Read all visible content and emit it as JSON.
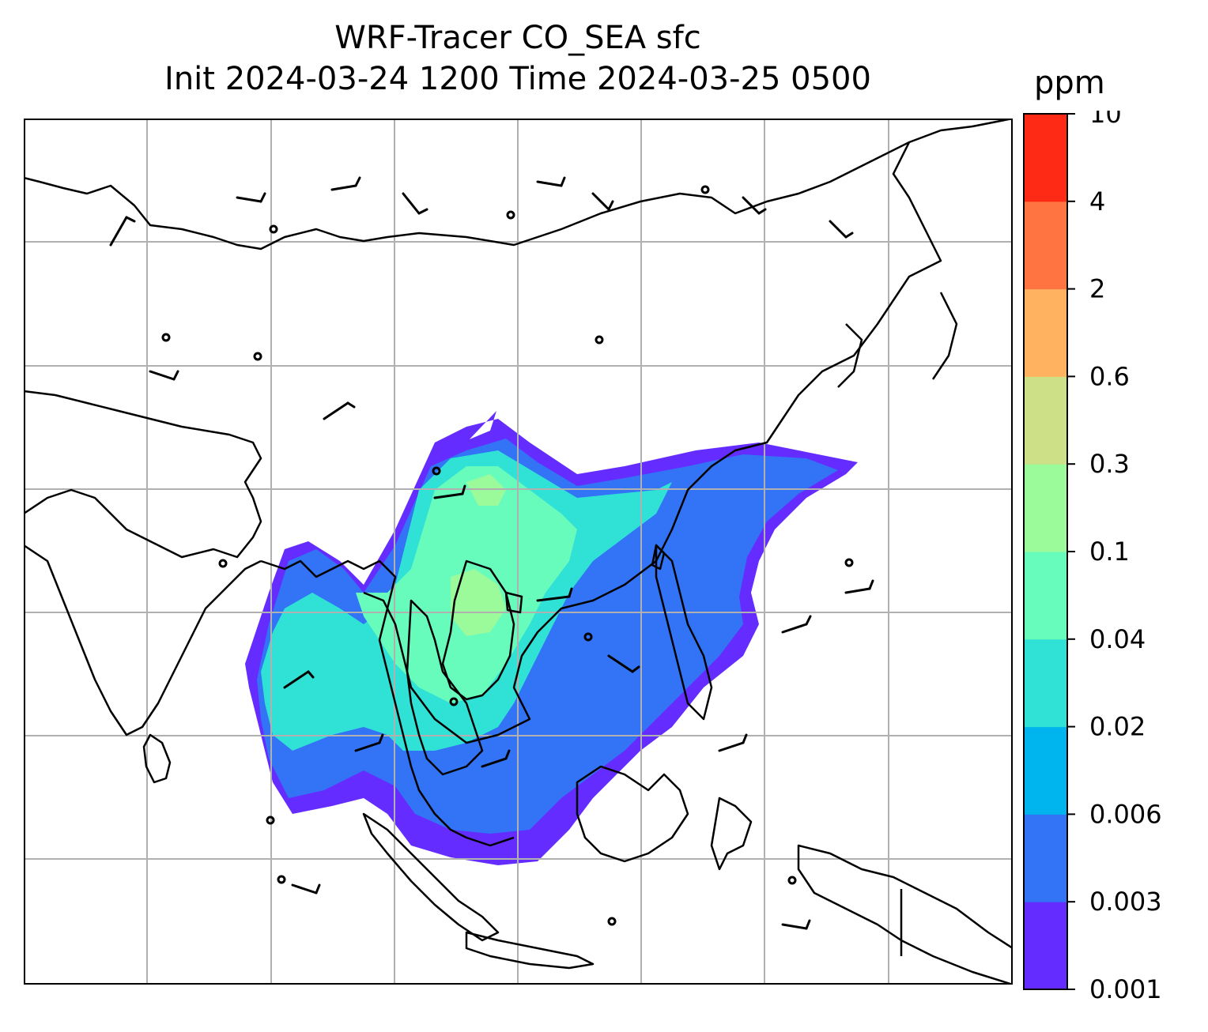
{
  "title": {
    "line1": "WRF-Tracer CO_SEA sfc",
    "line2": "Init 2024-03-24 1200 Time 2024-03-25 0500"
  },
  "colorbar": {
    "unit": "ppm",
    "levels": [
      "0.001",
      "0.003",
      "0.006",
      "0.02",
      "0.04",
      "0.1",
      "0.3",
      "0.6",
      "2",
      "4",
      "10"
    ],
    "colors": [
      "#652cff",
      "#3373f5",
      "#00b5ed",
      "#30e1d6",
      "#68fcbc",
      "#9bfa9a",
      "#cde087",
      "#ffb361",
      "#ff7440",
      "#ff2a15"
    ]
  },
  "map": {
    "gridlines": true,
    "grid_color": "#b0b0b0",
    "coastline_color": "#000000",
    "field": "CO_SEA tracer concentration",
    "overlay": "wind barbs"
  },
  "chart_data": {
    "type": "heatmap",
    "title": "WRF-Tracer CO_SEA sfc / Init 2024-03-24 1200 Time 2024-03-25 0500",
    "colorbar_label": "ppm",
    "colorbar_ticks": [
      0.001,
      0.003,
      0.006,
      0.02,
      0.04,
      0.1,
      0.3,
      0.6,
      2,
      4,
      10
    ],
    "grid": true,
    "legend_placement": "right"
  }
}
